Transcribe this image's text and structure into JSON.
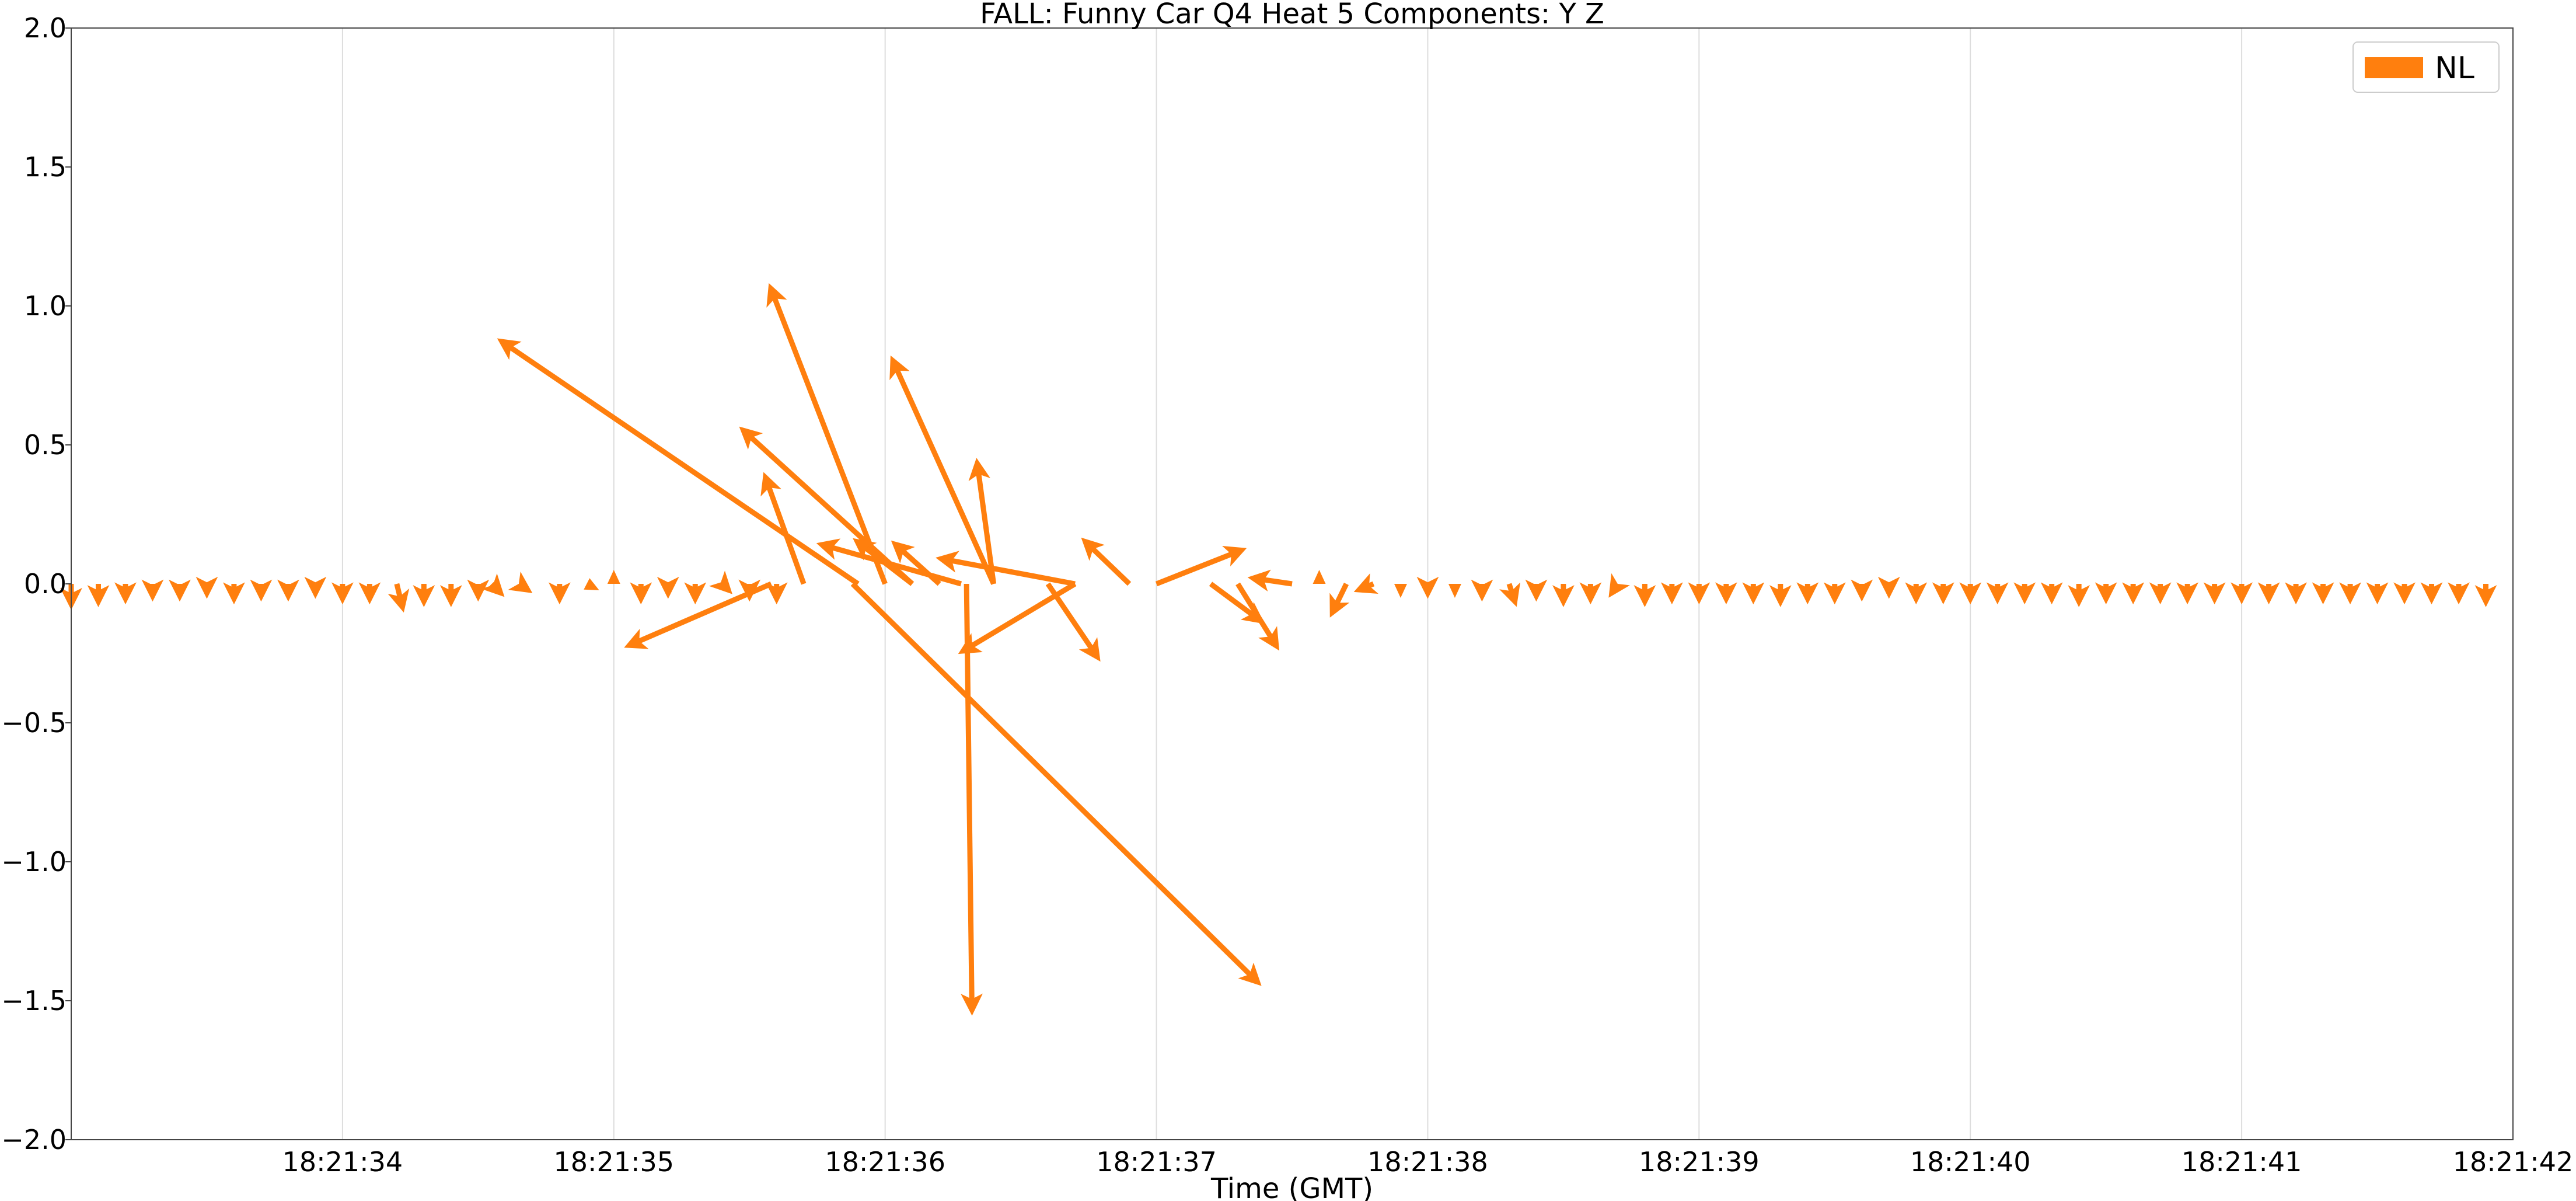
{
  "chart_data": {
    "type": "quiver",
    "title": "FALL: Funny Car Q4 Heat 5 Components: Y Z",
    "xlabel": "Time (GMT)",
    "ylabel": "",
    "xlim": [
      "18:21:33.00",
      "18:21:42.00"
    ],
    "ylim": [
      -2.0,
      2.0
    ],
    "x_ticks": [
      "18:21:34",
      "18:21:35",
      "18:21:36",
      "18:21:37",
      "18:21:38",
      "18:21:39",
      "18:21:40",
      "18:21:41",
      "18:21:42"
    ],
    "y_ticks": [
      "2.0",
      "1.5",
      "1.0",
      "0.5",
      "0.0",
      "−0.5",
      "−1.0",
      "−1.5",
      "−2.0"
    ],
    "grid": "x",
    "legend": {
      "placement": "top-right",
      "entries": [
        "NL"
      ]
    },
    "colors": {
      "series": "#ff7f0e",
      "grid": "#dddddd",
      "axis": "#444444"
    },
    "series": [
      {
        "name": "NL",
        "color": "#ff7f0e",
        "description": "arrows start at y=0; each vector is [time, dt_end, dy_end] where the arrow goes from (time, 0) to (time + dt_end seconds, dy_end)",
        "vectors": [
          [
            "18:21:33.00",
            0.0,
            -0.07
          ],
          [
            "18:21:33.10",
            0.0,
            -0.06
          ],
          [
            "18:21:33.20",
            0.0,
            -0.05
          ],
          [
            "18:21:33.30",
            0.0,
            -0.04
          ],
          [
            "18:21:33.40",
            0.0,
            -0.04
          ],
          [
            "18:21:33.50",
            0.0,
            -0.03
          ],
          [
            "18:21:33.60",
            0.0,
            -0.05
          ],
          [
            "18:21:33.70",
            0.0,
            -0.04
          ],
          [
            "18:21:33.80",
            0.0,
            -0.04
          ],
          [
            "18:21:33.90",
            0.0,
            -0.03
          ],
          [
            "18:21:34.00",
            0.0,
            -0.05
          ],
          [
            "18:21:34.10",
            0.0,
            -0.05
          ],
          [
            "18:21:34.20",
            0.02,
            -0.08
          ],
          [
            "18:21:34.30",
            0.0,
            -0.06
          ],
          [
            "18:21:34.40",
            0.0,
            -0.06
          ],
          [
            "18:21:34.50",
            0.0,
            -0.04
          ],
          [
            "18:21:34.55",
            0.03,
            -0.03
          ],
          [
            "18:21:34.65",
            0.03,
            -0.02
          ],
          [
            "18:21:34.80",
            0.0,
            -0.05
          ],
          [
            "18:21:34.90",
            0.02,
            -0.01
          ],
          [
            "18:21:35.00",
            0.0,
            0.01
          ],
          [
            "18:21:35.10",
            0.0,
            -0.05
          ],
          [
            "18:21:35.20",
            0.0,
            -0.03
          ],
          [
            "18:21:35.30",
            0.0,
            -0.05
          ],
          [
            "18:21:35.40",
            0.02,
            -0.02
          ],
          [
            "18:21:35.50",
            0.0,
            -0.04
          ],
          [
            "18:21:35.60",
            0.0,
            -0.05
          ],
          [
            "18:21:35.58",
            -0.52,
            -0.22
          ],
          [
            "18:21:35.70",
            -0.14,
            0.38
          ],
          [
            "18:21:35.90",
            -1.31,
            0.87
          ],
          [
            "18:21:35.88",
            1.49,
            -1.43
          ],
          [
            "18:21:36.00",
            -0.42,
            1.06
          ],
          [
            "18:21:36.10",
            -0.62,
            0.55
          ],
          [
            "18:21:36.20",
            -0.16,
            0.14
          ],
          [
            "18:21:36.28",
            -0.51,
            0.14
          ],
          [
            "18:21:36.10",
            -0.2,
            0.15
          ],
          [
            "18:21:36.30",
            0.02,
            -1.53
          ],
          [
            "18:21:36.40",
            -0.37,
            0.8
          ],
          [
            "18:21:36.40",
            -0.06,
            0.43
          ],
          [
            "18:21:36.70",
            -0.49,
            0.09
          ],
          [
            "18:21:36.70",
            -0.41,
            -0.24
          ],
          [
            "18:21:36.60",
            0.18,
            -0.26
          ],
          [
            "18:21:36.90",
            -0.16,
            0.15
          ],
          [
            "18:21:37.00",
            0.31,
            0.12
          ],
          [
            "18:21:37.20",
            0.18,
            -0.13
          ],
          [
            "18:21:37.30",
            0.14,
            -0.22
          ],
          [
            "18:21:37.50",
            -0.14,
            0.02
          ],
          [
            "18:21:37.60",
            0.0,
            0.01
          ],
          [
            "18:21:37.70",
            -0.05,
            -0.1
          ],
          [
            "18:21:37.80",
            -0.05,
            -0.02
          ],
          [
            "18:21:37.90",
            0.0,
            -0.02
          ],
          [
            "18:21:38.00",
            0.0,
            -0.03
          ],
          [
            "18:21:38.10",
            0.0,
            -0.02
          ],
          [
            "18:21:38.20",
            0.0,
            -0.04
          ],
          [
            "18:21:38.30",
            0.02,
            -0.06
          ],
          [
            "18:21:38.40",
            0.0,
            -0.04
          ],
          [
            "18:21:38.50",
            0.0,
            -0.06
          ],
          [
            "18:21:38.60",
            0.0,
            -0.05
          ],
          [
            "18:21:38.70",
            -0.02,
            -0.03
          ],
          [
            "18:21:38.80",
            0.0,
            -0.06
          ],
          [
            "18:21:38.90",
            0.0,
            -0.05
          ],
          [
            "18:21:39.00",
            0.0,
            -0.05
          ],
          [
            "18:21:39.10",
            0.0,
            -0.05
          ],
          [
            "18:21:39.20",
            0.0,
            -0.05
          ],
          [
            "18:21:39.30",
            0.0,
            -0.06
          ],
          [
            "18:21:39.40",
            0.0,
            -0.05
          ],
          [
            "18:21:39.50",
            0.0,
            -0.05
          ],
          [
            "18:21:39.60",
            0.0,
            -0.04
          ],
          [
            "18:21:39.70",
            0.0,
            -0.03
          ],
          [
            "18:21:39.80",
            0.0,
            -0.05
          ],
          [
            "18:21:39.90",
            0.0,
            -0.05
          ],
          [
            "18:21:40.00",
            0.0,
            -0.05
          ],
          [
            "18:21:40.10",
            0.0,
            -0.05
          ],
          [
            "18:21:40.20",
            0.0,
            -0.05
          ],
          [
            "18:21:40.30",
            0.0,
            -0.05
          ],
          [
            "18:21:40.40",
            0.0,
            -0.06
          ],
          [
            "18:21:40.50",
            0.0,
            -0.05
          ],
          [
            "18:21:40.60",
            0.0,
            -0.05
          ],
          [
            "18:21:40.70",
            0.0,
            -0.05
          ],
          [
            "18:21:40.80",
            0.0,
            -0.05
          ],
          [
            "18:21:40.90",
            0.0,
            -0.05
          ],
          [
            "18:21:41.00",
            0.0,
            -0.05
          ],
          [
            "18:21:41.10",
            0.0,
            -0.05
          ],
          [
            "18:21:41.20",
            0.0,
            -0.05
          ],
          [
            "18:21:41.30",
            0.0,
            -0.05
          ],
          [
            "18:21:41.40",
            0.0,
            -0.05
          ],
          [
            "18:21:41.50",
            0.0,
            -0.05
          ],
          [
            "18:21:41.60",
            0.0,
            -0.05
          ],
          [
            "18:21:41.70",
            0.0,
            -0.05
          ],
          [
            "18:21:41.80",
            0.0,
            -0.05
          ],
          [
            "18:21:41.90",
            0.0,
            -0.06
          ]
        ]
      }
    ]
  }
}
